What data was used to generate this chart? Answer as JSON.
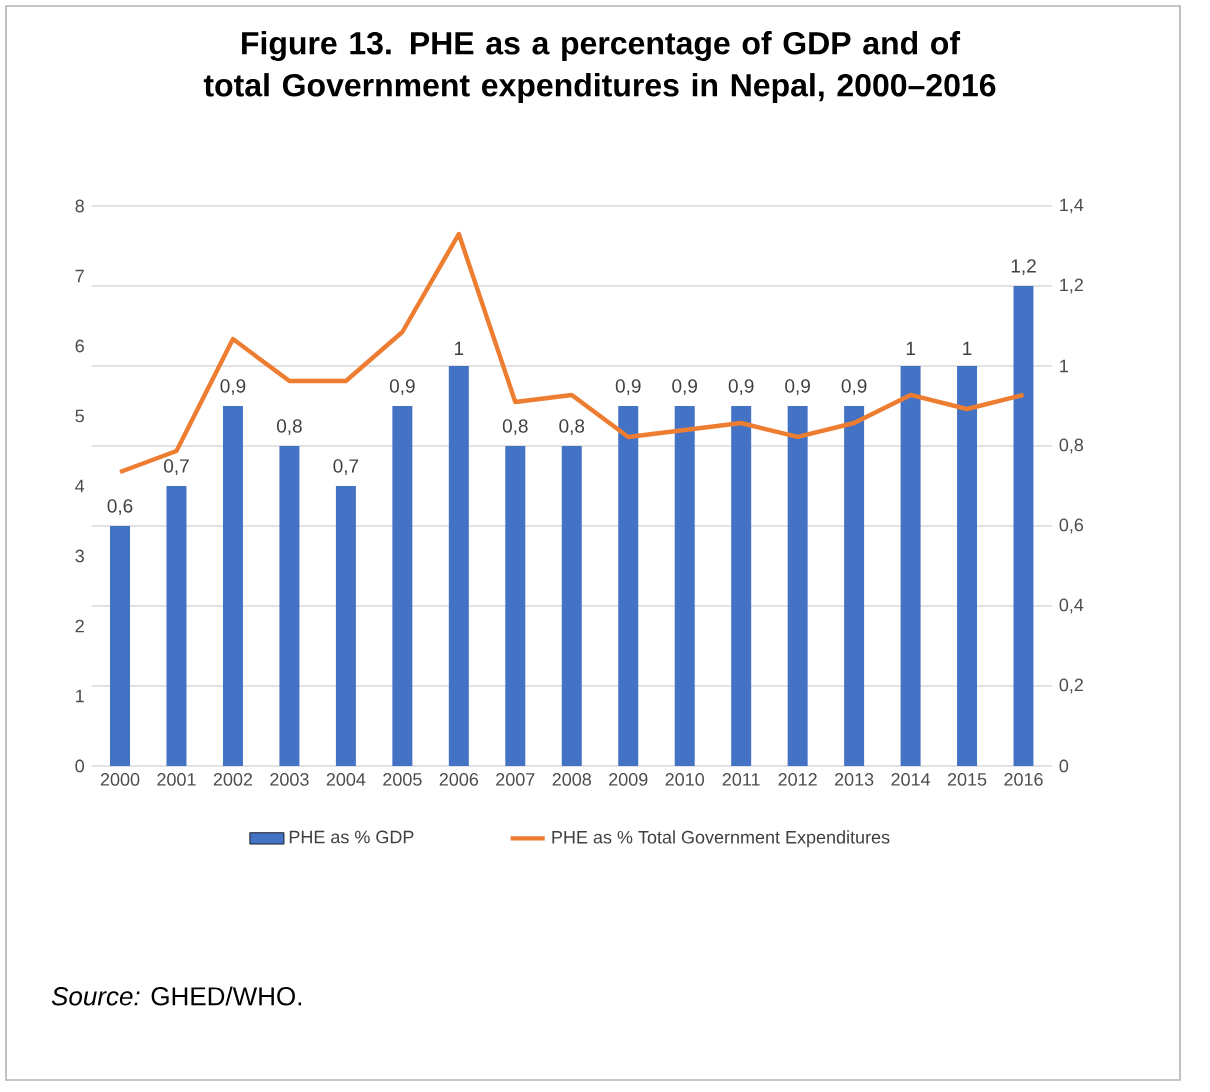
{
  "chart_data": {
    "type": "bar",
    "title": "Figure 13. PHE as a percentage of GDP and of total Government expenditures in Nepal, 2000–2016",
    "categories": [
      "2000",
      "2001",
      "2002",
      "2003",
      "2004",
      "2005",
      "2006",
      "2007",
      "2008",
      "2009",
      "2010",
      "2011",
      "2012",
      "2013",
      "2014",
      "2015",
      "2016"
    ],
    "series": [
      {
        "name": "PHE as % GDP",
        "axis": "y2",
        "color": "#4472c4",
        "values": [
          0.6,
          0.7,
          0.9,
          0.8,
          0.7,
          0.9,
          1.0,
          0.8,
          0.8,
          0.9,
          0.9,
          0.9,
          0.9,
          0.9,
          1.0,
          1.0,
          1.2
        ],
        "value_labels": [
          "0,6",
          "0,7",
          "0,9",
          "0,8",
          "0,7",
          "0,9",
          "1",
          "0,8",
          "0,8",
          "0,9",
          "0,9",
          "0,9",
          "0,9",
          "0,9",
          "1",
          "1",
          "1,2"
        ]
      },
      {
        "name": "PHE as % Total Government Expenditures",
        "type": "line",
        "color": "#ed7d31",
        "values": [
          4.2,
          4.5,
          6.1,
          5.5,
          5.5,
          6.2,
          7.6,
          5.2,
          5.3,
          4.7,
          4.8,
          4.9,
          4.7,
          4.9,
          5.3,
          5.1,
          5.3
        ]
      }
    ],
    "ylim": [
      0,
      8
    ],
    "yticks": [
      0,
      1,
      2,
      3,
      4,
      5,
      6,
      7,
      8
    ],
    "y2lim": [
      0,
      1.4
    ],
    "y2ticks": [
      0,
      {
        "value": 0.2,
        "label": "0,2"
      },
      {
        "value": 0.4,
        "label": "0,4"
      },
      {
        "value": 0.6,
        "label": "0,6"
      },
      {
        "value": 0.8,
        "label": "0,8"
      },
      1,
      {
        "value": 1.2,
        "label": "1,2"
      },
      {
        "value": 1.4,
        "label": "1,4"
      }
    ],
    "grid": "y",
    "legend": "bottom",
    "annotations": [
      "*Source:* GHED/WHO."
    ]
  }
}
